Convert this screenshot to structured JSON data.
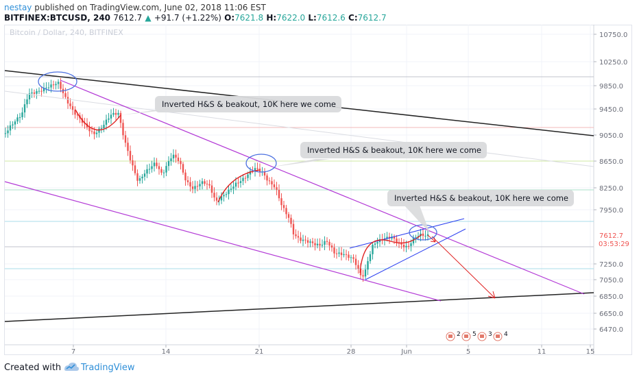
{
  "header": {
    "user": "nestay",
    "published_text": "published on TradingView.com, June 02, 2018 11:06 EST",
    "symbol": "BITFINEX:BTCUSD, 240",
    "last": "7612.7",
    "change": "+91.7 (+1.22%)",
    "o_label": "O:",
    "o_val": "7621.8",
    "h_label": "H:",
    "h_val": "7622.0",
    "l_label": "L:",
    "l_val": "7612.6",
    "c_label": "C:",
    "c_val": "7612.7"
  },
  "footer": {
    "created_with": "Created with",
    "brand": "TradingView"
  },
  "chart_data": {
    "type": "candlestick",
    "watermark": "Bitcoin / Dollar, 240, BITFINEX",
    "y_ticks": [
      "10750.0",
      "10250.0",
      "9850.0",
      "9450.0",
      "9050.0",
      "8650.0",
      "8250.0",
      "7950.0",
      "7250.0",
      "7050.0",
      "6850.0",
      "6650.0",
      "6470.0"
    ],
    "x_ticks": [
      "7",
      "14",
      "21",
      "28",
      "Jun",
      "5",
      "11",
      "15"
    ],
    "last_price_label": "7612.7",
    "countdown_label": "03:53:29",
    "annotations": [
      "Inverted H&S & beakout, 10K here we come",
      "Inverted H&S & beakout, 10K here we come",
      "Inverted H&S & beakout, 10K here we come"
    ],
    "event_markers": [
      "2",
      "5",
      "3",
      "4"
    ],
    "colors": {
      "up": "#26a69a",
      "down": "#ef5350",
      "channel": "#b33ad6",
      "trend": "#222222",
      "wedge": "#2b3ff0",
      "pattern": "#e02020",
      "ellipse": "#4a6fe0"
    }
  }
}
